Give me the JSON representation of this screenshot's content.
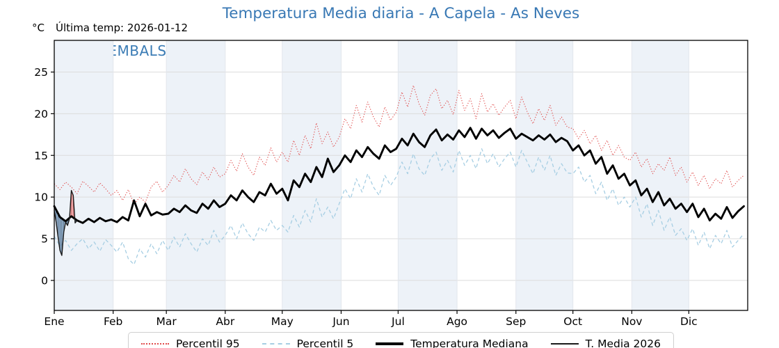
{
  "page": {
    "title": "Temperatura Media diaria - A Capela - As Neves",
    "y_unit_label": "°C",
    "last_temp_label": "Última temp: 2026-01-12",
    "watermark": "WWW.EMBALSES.NET"
  },
  "chart_data": {
    "type": "line",
    "title": "Temperatura Media diaria - A Capela - As Neves",
    "xlabel": "",
    "ylabel": "°C",
    "x_unit": "day_of_year",
    "xlim": [
      0,
      365
    ],
    "ylim": [
      -3.6,
      28.8
    ],
    "grid": true,
    "legend_position": "bottom-center",
    "x_tick_labels": [
      "Ene",
      "Feb",
      "Mar",
      "Abr",
      "May",
      "Jun",
      "Jul",
      "Ago",
      "Sep",
      "Oct",
      "Nov",
      "Dic"
    ],
    "month_start_days": [
      0,
      31,
      59,
      90,
      120,
      151,
      181,
      212,
      243,
      273,
      304,
      334,
      365
    ],
    "y_ticks": [
      0,
      5,
      10,
      15,
      20,
      25
    ],
    "x_step_days": 3,
    "colors": {
      "band": "#edf2f8",
      "grid_h": "#dcdcdc",
      "grid_v": "#e2e6ec",
      "axis": "#000000",
      "title": "#3878b4",
      "watermark": "#3b7cb5",
      "fill_below_median": "#6b93bd",
      "fill_above_median": "#ee9a9a"
    },
    "series": [
      {
        "name": "Percentil 95",
        "style": "dotted",
        "color": "#e04c4c",
        "width": 1.1,
        "values": [
          11.6,
          10.9,
          11.8,
          11.2,
          10.4,
          11.9,
          11.3,
          10.6,
          11.7,
          11.0,
          10.2,
          10.8,
          9.6,
          10.9,
          9.1,
          10.0,
          9.4,
          11.2,
          11.9,
          10.6,
          11.4,
          12.6,
          11.8,
          13.4,
          12.2,
          11.5,
          13.0,
          12.1,
          13.6,
          12.4,
          12.8,
          14.4,
          13.1,
          15.2,
          13.6,
          12.6,
          14.8,
          13.8,
          15.9,
          14.2,
          15.4,
          14.2,
          16.8,
          15.0,
          17.4,
          15.8,
          18.9,
          16.4,
          17.8,
          16.0,
          17.2,
          19.4,
          18.2,
          21.0,
          19.0,
          21.4,
          19.6,
          18.4,
          20.8,
          19.2,
          20.2,
          22.6,
          20.8,
          23.4,
          21.2,
          19.8,
          22.2,
          23.0,
          20.6,
          21.6,
          19.9,
          22.8,
          20.4,
          21.8,
          19.4,
          22.4,
          20.2,
          21.2,
          19.8,
          20.8,
          21.6,
          19.4,
          22.0,
          20.2,
          18.8,
          20.6,
          19.2,
          21.0,
          18.6,
          19.6,
          18.4,
          18.2,
          17.0,
          18.0,
          16.4,
          17.4,
          15.6,
          16.8,
          15.0,
          16.2,
          14.8,
          14.4,
          15.4,
          13.6,
          14.6,
          12.8,
          14.0,
          13.2,
          14.8,
          12.6,
          13.6,
          11.8,
          13.0,
          11.4,
          12.6,
          11.0,
          12.2,
          11.6,
          13.2,
          11.2,
          12.0,
          12.6
        ]
      },
      {
        "name": "Percentil 5",
        "style": "dashed",
        "color": "#a6cee3",
        "width": 1.3,
        "values": [
          5.3,
          4.1,
          4.8,
          3.6,
          4.4,
          5.0,
          3.8,
          4.6,
          3.5,
          4.9,
          4.2,
          3.4,
          4.6,
          2.6,
          1.9,
          3.8,
          2.8,
          4.4,
          3.2,
          4.8,
          3.6,
          5.2,
          4.0,
          5.6,
          4.4,
          3.4,
          5.0,
          4.2,
          6.0,
          4.6,
          5.4,
          6.6,
          5.0,
          6.9,
          5.6,
          4.8,
          6.4,
          5.8,
          7.2,
          6.0,
          6.6,
          5.8,
          7.8,
          6.4,
          8.4,
          7.0,
          9.8,
          7.6,
          8.8,
          7.4,
          9.2,
          11.0,
          9.8,
          12.2,
          10.6,
          12.8,
          11.2,
          10.2,
          12.6,
          11.4,
          12.4,
          14.2,
          12.8,
          15.2,
          13.4,
          12.6,
          14.6,
          15.4,
          13.2,
          14.4,
          13.0,
          15.6,
          13.8,
          15.0,
          13.4,
          15.8,
          14.0,
          15.2,
          13.6,
          14.6,
          15.4,
          13.6,
          15.6,
          14.2,
          12.8,
          14.8,
          13.2,
          15.0,
          12.6,
          14.0,
          12.9,
          12.8,
          13.6,
          11.8,
          12.6,
          10.4,
          11.8,
          9.6,
          11.0,
          9.0,
          10.0,
          8.8,
          10.0,
          7.6,
          9.2,
          6.6,
          8.4,
          6.0,
          7.6,
          5.4,
          6.2,
          4.8,
          6.2,
          4.2,
          5.8,
          3.8,
          5.4,
          4.4,
          6.0,
          4.0,
          4.8,
          5.6
        ]
      },
      {
        "name": "Temperatura Mediana",
        "style": "solid",
        "color": "#000000",
        "width": 2.9,
        "values": [
          8.9,
          7.6,
          7.1,
          7.7,
          7.2,
          6.9,
          7.4,
          7.0,
          7.5,
          7.1,
          7.3,
          7.0,
          7.6,
          7.2,
          9.6,
          7.7,
          9.2,
          7.8,
          8.2,
          7.9,
          8.0,
          8.6,
          8.2,
          9.0,
          8.4,
          8.1,
          9.2,
          8.6,
          9.6,
          8.8,
          9.2,
          10.2,
          9.6,
          10.8,
          10.0,
          9.4,
          10.6,
          10.2,
          11.6,
          10.4,
          11.0,
          9.6,
          12.0,
          11.2,
          12.8,
          11.8,
          13.6,
          12.4,
          14.6,
          13.0,
          13.8,
          15.0,
          14.2,
          15.6,
          14.8,
          16.0,
          15.2,
          14.6,
          16.2,
          15.4,
          15.8,
          17.0,
          16.2,
          17.6,
          16.6,
          16.0,
          17.4,
          18.1,
          16.8,
          17.5,
          16.9,
          18.0,
          17.2,
          18.3,
          17.0,
          18.2,
          17.4,
          18.0,
          17.1,
          17.7,
          18.2,
          17.0,
          17.6,
          17.2,
          16.8,
          17.4,
          16.9,
          17.5,
          16.6,
          17.1,
          16.7,
          15.6,
          16.2,
          15.0,
          15.6,
          14.0,
          14.8,
          12.8,
          13.8,
          12.2,
          12.8,
          11.4,
          12.0,
          10.2,
          11.0,
          9.4,
          10.6,
          9.0,
          9.8,
          8.6,
          9.2,
          8.2,
          9.2,
          7.6,
          8.6,
          7.2,
          8.0,
          7.4,
          8.8,
          7.5,
          8.3,
          8.9
        ]
      },
      {
        "name": "T. Media 2026",
        "style": "solid",
        "color": "#1a1a1a",
        "width": 1.4,
        "x_step_days": 1,
        "values": [
          8.4,
          7.0,
          5.2,
          3.6,
          3.0,
          5.8,
          7.0,
          6.6,
          7.4,
          10.8,
          10.2,
          6.9,
          7.2
        ]
      }
    ],
    "fill_reference_median_daily": [
      8.9,
      8.5,
      8.0,
      7.6,
      7.4,
      7.3,
      7.1,
      7.3,
      7.5,
      7.7,
      7.5,
      7.4,
      7.2
    ]
  }
}
